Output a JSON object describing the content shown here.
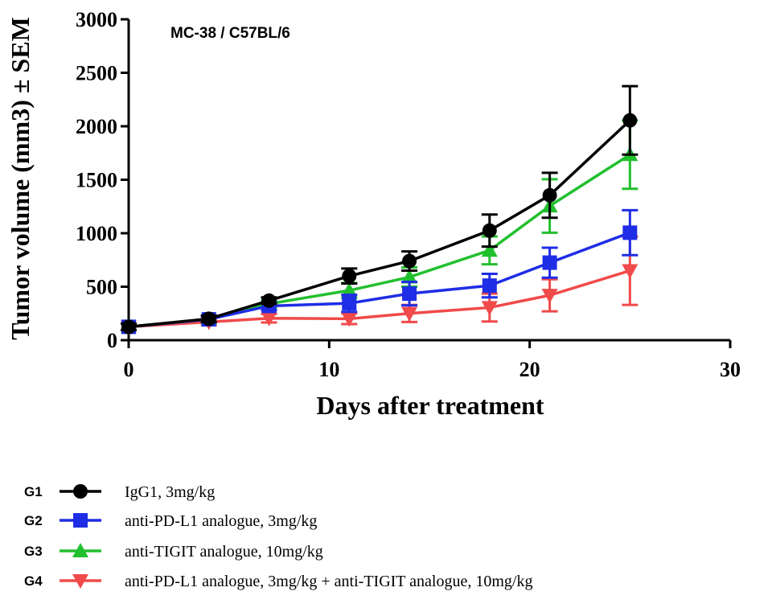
{
  "chart_data": {
    "type": "line",
    "title": "",
    "annotation": "MC-38 / C57BL/6",
    "xlabel": "Days after treatment",
    "ylabel": "Tumor volume (mm3) ± SEM",
    "xlim": [
      0,
      30
    ],
    "ylim": [
      0,
      3000
    ],
    "xticks": [
      0,
      10,
      20,
      30
    ],
    "yticks": [
      0,
      500,
      1000,
      1500,
      2000,
      2500,
      3000
    ],
    "grid": false,
    "legend_position": "bottom",
    "series": [
      {
        "group": "G1",
        "name": "IgG1, 3mg/kg",
        "color": "#000000",
        "marker": "circle",
        "x": [
          0,
          4,
          7,
          11,
          14,
          18,
          21,
          25
        ],
        "y": [
          125,
          200,
          370,
          600,
          740,
          1025,
          1355,
          2055
        ],
        "error": [
          30,
          30,
          30,
          70,
          90,
          150,
          210,
          320
        ]
      },
      {
        "group": "G2",
        "name": "anti-PD-L1 analogue, 3mg/kg",
        "color": "#1f2de6",
        "marker": "square",
        "x": [
          0,
          4,
          7,
          11,
          14,
          18,
          21,
          25
        ],
        "y": [
          125,
          195,
          320,
          345,
          435,
          510,
          725,
          1005
        ],
        "error": [
          30,
          30,
          40,
          80,
          110,
          110,
          140,
          210
        ]
      },
      {
        "group": "G3",
        "name": "anti-TIGIT analogue, 10mg/kg",
        "color": "#22c02e",
        "marker": "triangle-up",
        "x": [
          0,
          4,
          7,
          11,
          14,
          18,
          21,
          25
        ],
        "y": [
          125,
          195,
          340,
          465,
          590,
          840,
          1255,
          1735
        ],
        "error": [
          30,
          30,
          40,
          70,
          90,
          130,
          250,
          320
        ]
      },
      {
        "group": "G4",
        "name": "anti-PD-L1 analogue, 3mg/kg + anti-TIGIT analogue, 10mg/kg",
        "color": "#f04a4a",
        "marker": "triangle-down",
        "x": [
          0,
          4,
          7,
          11,
          14,
          18,
          21,
          25
        ],
        "y": [
          125,
          170,
          205,
          200,
          250,
          305,
          420,
          650
        ],
        "error": [
          30,
          30,
          40,
          50,
          80,
          130,
          150,
          320
        ]
      }
    ]
  }
}
